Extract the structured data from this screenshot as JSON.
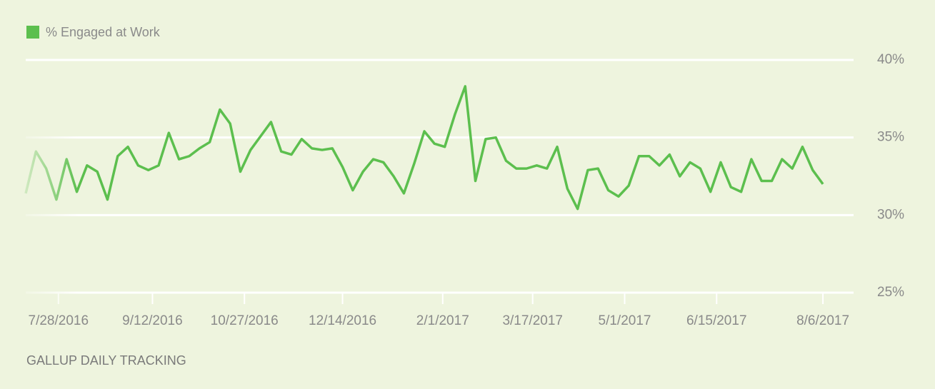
{
  "chart_data": {
    "type": "line",
    "legend": "top-left",
    "source": "GALLUP DAILY TRACKING",
    "x": [
      "7/12/2016",
      "7/17/2016",
      "7/22/2016",
      "7/27/2016",
      "8/1/2016",
      "8/6/2016",
      "8/11/2016",
      "8/16/2016",
      "8/21/2016",
      "8/26/2016",
      "8/31/2016",
      "9/5/2016",
      "9/10/2016",
      "9/15/2016",
      "9/20/2016",
      "9/25/2016",
      "9/30/2016",
      "10/5/2016",
      "10/10/2016",
      "10/15/2016",
      "10/20/2016",
      "10/25/2016",
      "10/30/2016",
      "11/4/2016",
      "11/9/2016",
      "11/14/2016",
      "11/19/2016",
      "11/24/2016",
      "11/29/2016",
      "12/4/2016",
      "12/9/2016",
      "12/14/2016",
      "12/19/2016",
      "12/24/2016",
      "12/29/2016",
      "1/3/2017",
      "1/8/2017",
      "1/13/2017",
      "1/18/2017",
      "1/23/2017",
      "1/28/2017",
      "2/2/2017",
      "2/7/2017",
      "2/12/2017",
      "2/17/2017",
      "2/22/2017",
      "2/27/2017",
      "3/4/2017",
      "3/9/2017",
      "3/14/2017",
      "3/19/2017",
      "3/24/2017",
      "3/29/2017",
      "4/3/2017",
      "4/8/2017",
      "4/13/2017",
      "4/18/2017",
      "4/23/2017",
      "4/28/2017",
      "5/3/2017",
      "5/8/2017",
      "5/13/2017",
      "5/18/2017",
      "5/23/2017",
      "5/28/2017",
      "6/2/2017",
      "6/7/2017",
      "6/12/2017",
      "6/17/2017",
      "6/22/2017",
      "6/27/2017",
      "7/2/2017",
      "7/7/2017",
      "7/12/2017",
      "7/17/2017",
      "7/22/2017",
      "7/27/2017",
      "8/1/2017",
      "8/6/2017"
    ],
    "series": [
      {
        "name": "% Engaged at Work",
        "color": "#5cbf4e",
        "values": [
          31.4,
          34.1,
          33,
          31.0,
          33.6,
          31.5,
          33.2,
          32.8,
          31,
          33.8,
          34.4,
          33.2,
          32.9,
          33.2,
          35.3,
          33.6,
          33.8,
          34.3,
          34.7,
          36.8,
          35.9,
          32.8,
          34.2,
          35.1,
          36.0,
          34.1,
          33.9,
          34.9,
          34.3,
          34.2,
          34.3,
          33.1,
          31.6,
          32.8,
          33.6,
          33.4,
          32.5,
          31.4,
          33.3,
          35.4,
          34.6,
          34.4,
          36.5,
          38.3,
          32.2,
          34.9,
          35.0,
          33.5,
          33.0,
          33.0,
          33.2,
          33.0,
          34.4,
          31.7,
          30.4,
          32.9,
          33.0,
          31.6,
          31.2,
          31.9,
          33.8,
          33.8,
          33.2,
          33.9,
          32.5,
          33.4,
          33.0,
          31.5,
          33.4,
          31.8,
          31.5,
          33.6,
          32.2,
          32.2,
          33.6,
          33.0,
          34.4,
          32.9,
          32.0
        ]
      }
    ],
    "xlim": [
      "7/12/2016",
      "8/21/2017"
    ],
    "xticks": [
      "7/28/2016",
      "9/12/2016",
      "10/27/2016",
      "12/14/2016",
      "2/1/2017",
      "3/17/2017",
      "5/1/2017",
      "6/15/2017",
      "8/6/2017"
    ],
    "ylim": [
      25,
      40
    ],
    "yticks": [
      {
        "value": 25,
        "label": "25%"
      },
      {
        "value": 30,
        "label": "30%"
      },
      {
        "value": 35,
        "label": "35%"
      },
      {
        "value": 40,
        "label": "40%"
      }
    ],
    "grid": true
  }
}
